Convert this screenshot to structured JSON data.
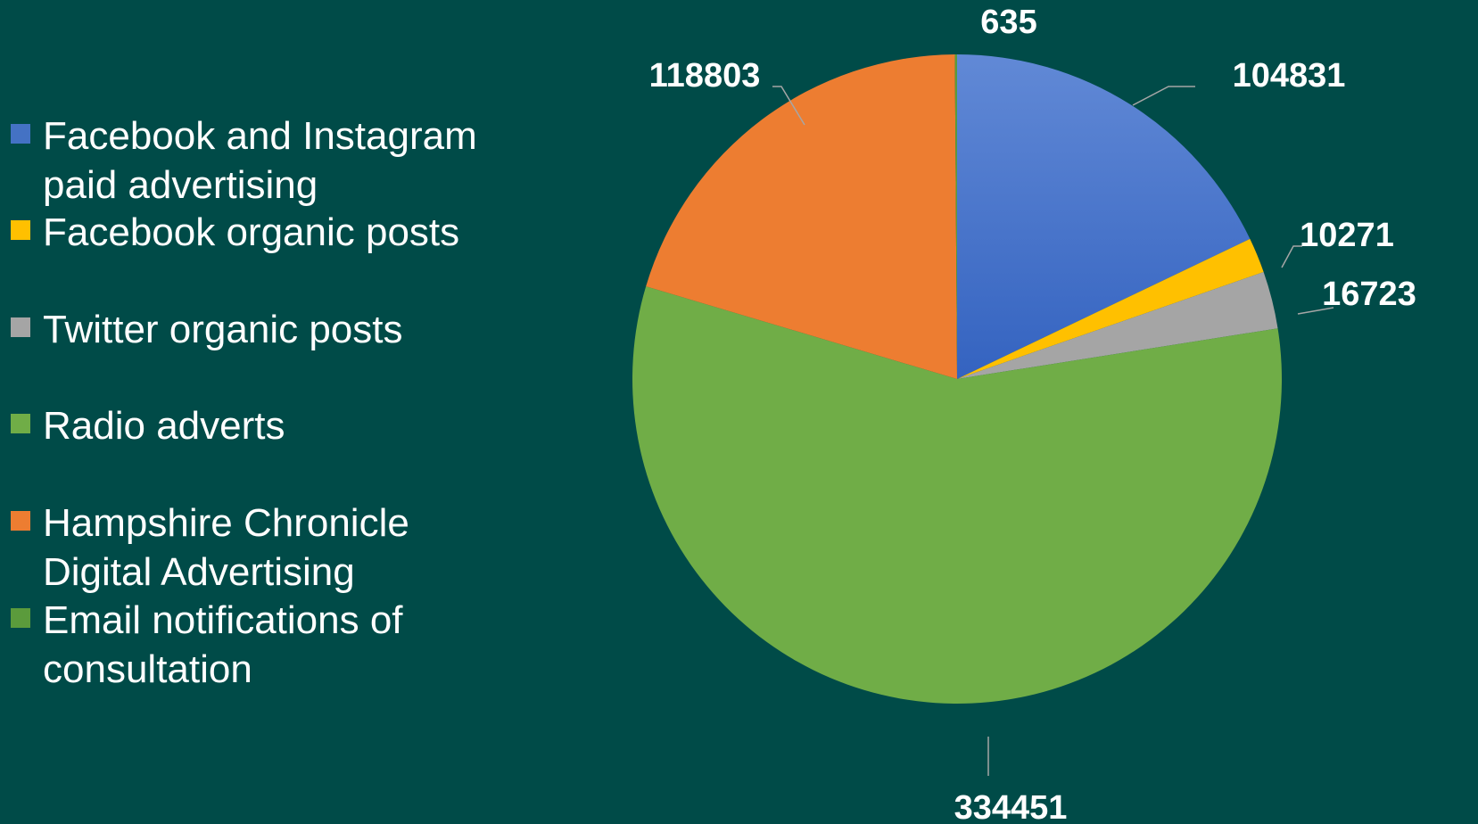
{
  "chart_data": {
    "type": "pie",
    "title": "",
    "legend_position": "left",
    "start_angle_deg": 0,
    "direction": "clockwise",
    "slices": [
      {
        "name": "Facebook and Instagram paid advertising",
        "value": 104831,
        "label": "104831",
        "color": "#4472c4"
      },
      {
        "name": "Facebook organic posts",
        "value": 10271,
        "label": "10271",
        "color": "#ffc000"
      },
      {
        "name": "Twitter organic posts",
        "value": 16723,
        "label": "16723",
        "color": "#a5a5a5"
      },
      {
        "name": "Radio adverts",
        "value": 334451,
        "label": "334451",
        "color": "#70ad47"
      },
      {
        "name": "Hampshire Chronicle Digital Advertising",
        "value": 118803,
        "label": "118803",
        "color": "#ed7d31"
      },
      {
        "name": "Email notifications of consultation",
        "value": 635,
        "label": "635",
        "color": "#5b9b3c"
      }
    ]
  }
}
